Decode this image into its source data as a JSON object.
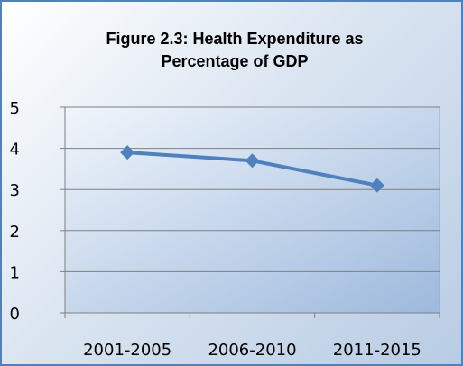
{
  "chart_data": {
    "type": "line",
    "title": "Figure 2.3: Health Expenditure as Percentage of GDP",
    "title_lines": [
      "Figure 2.3: Health Expenditure as",
      "Percentage of GDP"
    ],
    "categories": [
      "2001-2005",
      "2006-2010",
      "2011-2015"
    ],
    "series": [
      {
        "values": [
          3.9,
          3.7,
          3.1
        ],
        "color": "#4f81bd",
        "marker": "diamond"
      }
    ],
    "ylim": [
      0,
      5
    ],
    "yticks": [
      0,
      1,
      2,
      3,
      4,
      5
    ],
    "grid": true,
    "legend": "none",
    "colors": {
      "frame_border": "#4f81bd",
      "plot_fill_light": "#f0f5fb",
      "plot_fill_dark": "#9db9dd",
      "plot_border": "#8eaad2",
      "gridline": "#7f7f7f",
      "axis": "#7f7f7f"
    }
  }
}
